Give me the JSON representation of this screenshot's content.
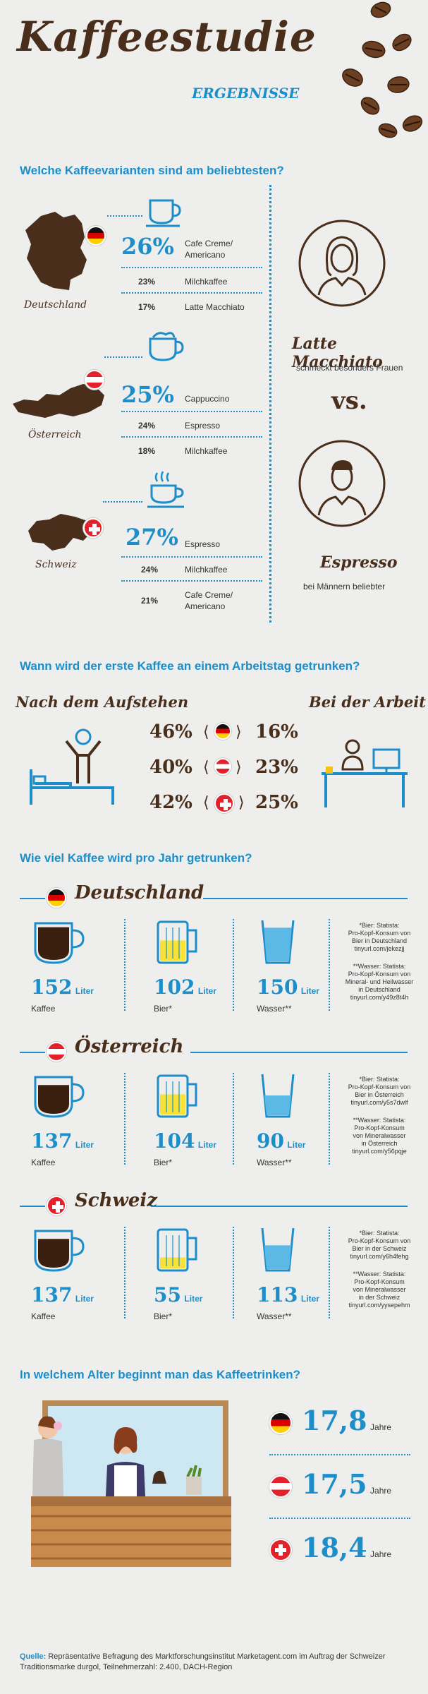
{
  "header": {
    "title": "Kaffeestudie",
    "subtitle": "ERGEBNISSE"
  },
  "section1": {
    "heading": "Welche Kaffeevarianten sind am beliebtesten?",
    "countries": [
      {
        "name": "Deutschland",
        "top_pct": "26%",
        "top_label_1": "Cafe Creme/",
        "top_label_2": "Americano",
        "r2_pct": "23%",
        "r2_label": "Milchkaffee",
        "r3_pct": "17%",
        "r3_label": "Latte Macchiato"
      },
      {
        "name": "Österreich",
        "top_pct": "25%",
        "top_label_1": "Cappuccino",
        "top_label_2": "",
        "r2_pct": "24%",
        "r2_label": "Espresso",
        "r3_pct": "18%",
        "r3_label": "Milchkaffee"
      },
      {
        "name": "Schweiz",
        "top_pct": "27%",
        "top_label_1": "Espresso",
        "top_label_2": "",
        "r2_pct": "24%",
        "r2_label": "Milchkaffee",
        "r3_pct": "21%",
        "r3_label_1": "Cafe Creme/",
        "r3_label_2": "Americano"
      }
    ],
    "women_title": "Latte Macchiato",
    "women_sub": "schmeckt besonders Frauen",
    "vs": "vs.",
    "men_title": "Espresso",
    "men_sub": "bei Männern beliebter"
  },
  "section2": {
    "heading": "Wann wird der erste Kaffee an einem Arbeitstag getrunken?",
    "left_title": "Nach dem Aufstehen",
    "right_title": "Bei der Arbeit",
    "rows": [
      {
        "country": "Deutschland",
        "left": "46%",
        "right": "16%"
      },
      {
        "country": "Österreich",
        "left": "40%",
        "right": "23%"
      },
      {
        "country": "Schweiz",
        "left": "42%",
        "right": "25%"
      }
    ]
  },
  "section3": {
    "heading": "Wie viel Kaffee wird pro Jahr getrunken?",
    "unit": "Liter",
    "countries": [
      {
        "name": "Deutschland",
        "coffee": "152",
        "beer": "102",
        "water": "150",
        "coffee_label": "Kaffee",
        "beer_label": "Bier*",
        "water_label": "Wasser**",
        "note_beer": [
          "*Bier: Statista:",
          "Pro-Kopf-Konsum von",
          "Bier in Deutschland",
          "tinyurl.com/jekezjj"
        ],
        "note_water": [
          "**Wasser: Statista:",
          "Pro-Kopf-Konsum von",
          "Mineral- und Heilwasser",
          "in Deutschland",
          "tinyurl.com/y49z8t4h"
        ]
      },
      {
        "name": "Österreich",
        "coffee": "137",
        "beer": "104",
        "water": "90",
        "coffee_label": "Kaffee",
        "beer_label": "Bier*",
        "water_label": "Wasser**",
        "note_beer": [
          "*Bier: Statista:",
          "Pro-Kopf-Konsum von",
          "Bier in Österreich",
          "tinyurl.com/y5s7dwlf"
        ],
        "note_water": [
          "**Wasser: Statista:",
          "Pro-Kopf-Konsum",
          "von Mineralwasser",
          "in Österreich",
          "tinyurl.com/y56pqje"
        ]
      },
      {
        "name": "Schweiz",
        "coffee": "137",
        "beer": "55",
        "water": "113",
        "coffee_label": "Kaffee",
        "beer_label": "Bier*",
        "water_label": "Wasser**",
        "note_beer": [
          "*Bier: Statista:",
          "Pro-Kopf-Konsum von",
          "Bier in der Schweiz",
          "tinyurl.com/y6h4fehg"
        ],
        "note_water": [
          "**Wasser: Statista:",
          "Pro-Kopf-Konsum",
          "von Mineralwasser",
          "in der Schweiz",
          "tinyurl.com/yysepehm"
        ]
      }
    ],
    "fill_levels": {
      "de": {
        "coffee": 0.9,
        "beer": 0.55,
        "water": 0.85
      },
      "at": {
        "coffee": 0.8,
        "beer": 0.55,
        "water": 0.5
      },
      "ch": {
        "coffee": 0.8,
        "beer": 0.3,
        "water": 0.6
      }
    }
  },
  "section4": {
    "heading": "In welchem Alter beginnt man das Kaffeetrinken?",
    "unit": "Jahre",
    "ages": [
      {
        "country": "Deutschland",
        "age": "17,8"
      },
      {
        "country": "Österreich",
        "age": "17,5"
      },
      {
        "country": "Schweiz",
        "age": "18,4"
      }
    ]
  },
  "source": {
    "label": "Quelle:",
    "text": "Repräsentative Befragung des Marktforschungsinstitut Marketagent.com im Auftrag der Schweizer Traditionsmarke durgol, Teilnehmerzahl: 2.400, DACH-Region"
  },
  "colors": {
    "blue": "#1d8ec9",
    "brown": "#4a2e1c",
    "background": "#eeeeec"
  }
}
